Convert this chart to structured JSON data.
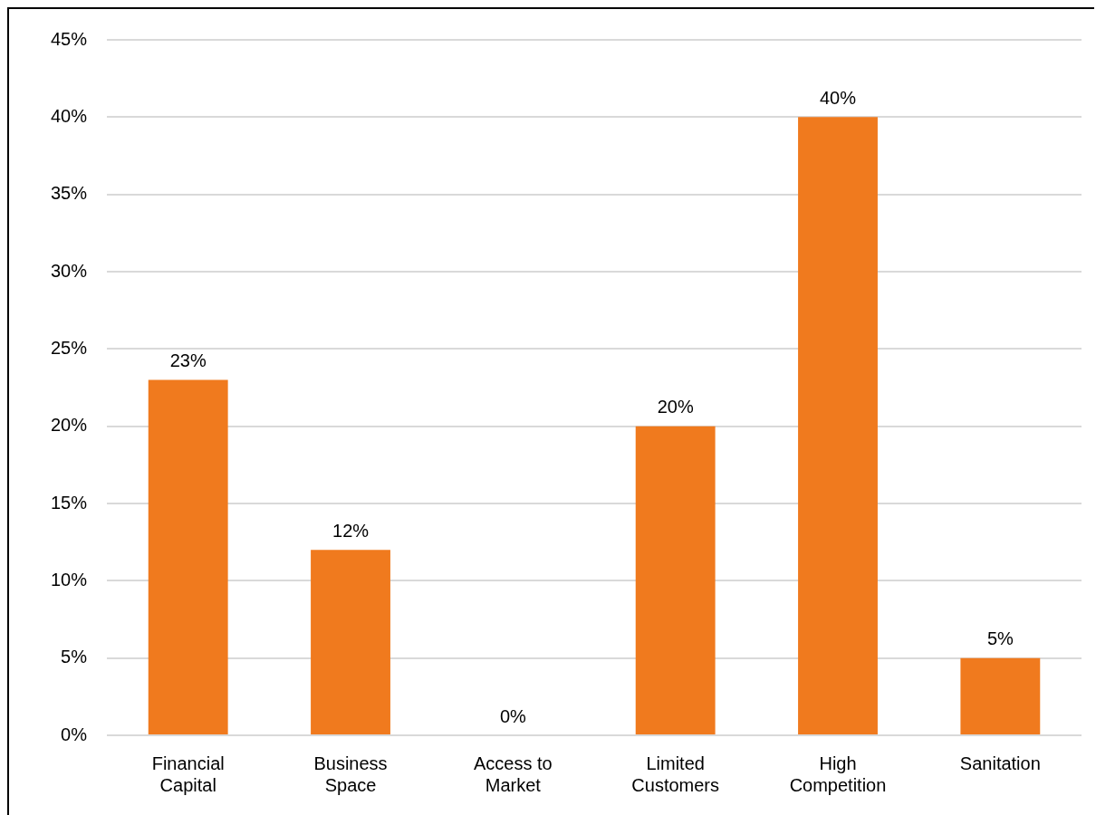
{
  "chart_data": {
    "type": "bar",
    "categories": [
      "Financial Capital",
      "Business Space",
      "Access to Market",
      "Limited Customers",
      "High Competition",
      "Sanitation"
    ],
    "values": [
      23,
      12,
      0,
      20,
      40,
      5
    ],
    "value_labels": [
      "23%",
      "12%",
      "0%",
      "20%",
      "40%",
      "5%"
    ],
    "color": "#f07a1e",
    "ylim": [
      0,
      45
    ],
    "yticks": [
      {
        "value": 0,
        "label": "0%"
      },
      {
        "value": 5,
        "label": "5%"
      },
      {
        "value": 10,
        "label": "10%"
      },
      {
        "value": 15,
        "label": "15%"
      },
      {
        "value": 20,
        "label": "20%"
      },
      {
        "value": 25,
        "label": "25%"
      },
      {
        "value": 30,
        "label": "30%"
      },
      {
        "value": 35,
        "label": "35%"
      },
      {
        "value": 40,
        "label": "40%"
      },
      {
        "value": 45,
        "label": "45%"
      }
    ],
    "grid": "y"
  }
}
